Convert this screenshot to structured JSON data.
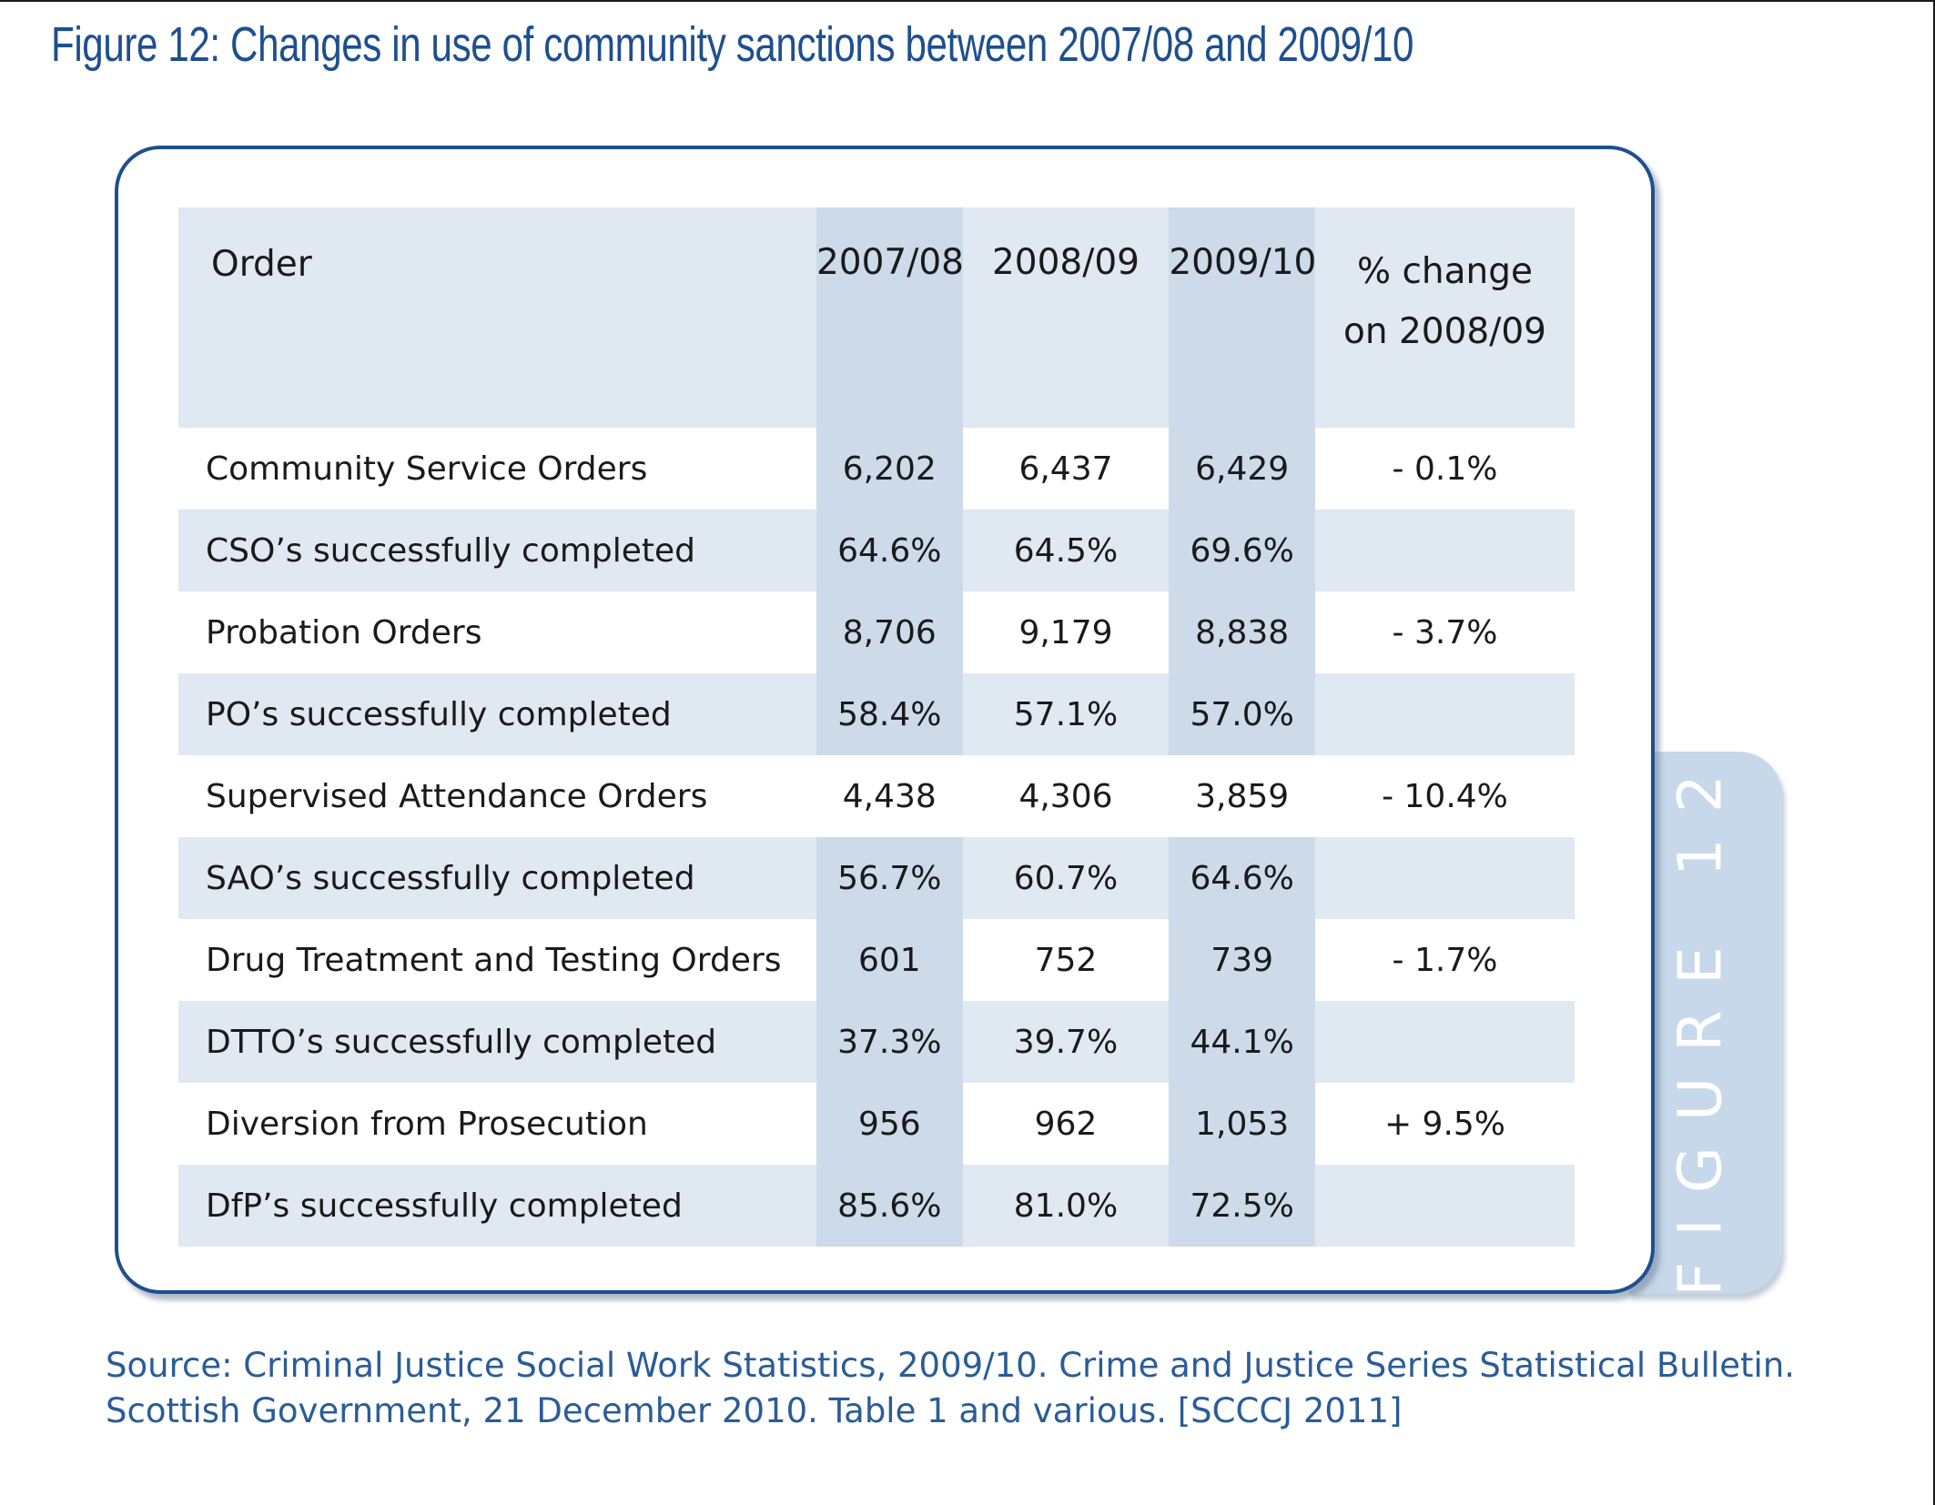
{
  "figure": {
    "title": "Figure 12: Changes in use of community sanctions between 2007/08 and 2009/10",
    "side_label": "FIGURE 12"
  },
  "table": {
    "headers": {
      "order": "Order",
      "y1": "2007/08",
      "y2": "2008/09",
      "y3": "2009/10",
      "change_line1": "% change",
      "change_line2": "on 2008/09"
    },
    "rows": [
      {
        "order": "Community Service Orders",
        "y1": "6,202",
        "y2": "6,437",
        "y3": "6,429",
        "change": "- 0.1%"
      },
      {
        "order": "CSO’s successfully completed",
        "y1": "64.6%",
        "y2": "64.5%",
        "y3": "69.6%",
        "change": ""
      },
      {
        "order": "Probation Orders",
        "y1": "8,706",
        "y2": "9,179",
        "y3": "8,838",
        "change": "- 3.7%"
      },
      {
        "order": "PO’s successfully completed",
        "y1": "58.4%",
        "y2": "57.1%",
        "y3": "57.0%",
        "change": ""
      },
      {
        "order": "Supervised Attendance Orders",
        "y1": "4,438",
        "y2": "4,306",
        "y3": "3,859",
        "change": "- 10.4%"
      },
      {
        "order": "SAO’s successfully completed",
        "y1": "56.7%",
        "y2": "60.7%",
        "y3": "64.6%",
        "change": ""
      },
      {
        "order": "Drug Treatment and Testing Orders",
        "y1": "601",
        "y2": "752",
        "y3": "739",
        "change": "- 1.7%"
      },
      {
        "order": "DTTO’s successfully completed",
        "y1": "37.3%",
        "y2": "39.7%",
        "y3": "44.1%",
        "change": ""
      },
      {
        "order": "Diversion from Prosecution",
        "y1": "956",
        "y2": "962",
        "y3": "1,053",
        "change": "+ 9.5%"
      },
      {
        "order": "DfP’s successfully completed",
        "y1": "85.6%",
        "y2": "81.0%",
        "y3": "72.5%",
        "change": ""
      }
    ]
  },
  "source": {
    "line1": "Source: Criminal Justice Social Work Statistics, 2009/10. Crime and Justice Series Statistical Bulletin.",
    "line2": "Scottish Government, 21 December 2010. Table 1 and various. [SCCCJ 2011]"
  },
  "colors": {
    "title_blue": "#1e4f8f",
    "source_blue": "#2a5c98",
    "panel_border": "#1e4f8f",
    "row_shade": "#e0e8f2",
    "column_shade": "#ccdaea",
    "side_tab": "#c7d8ea"
  }
}
